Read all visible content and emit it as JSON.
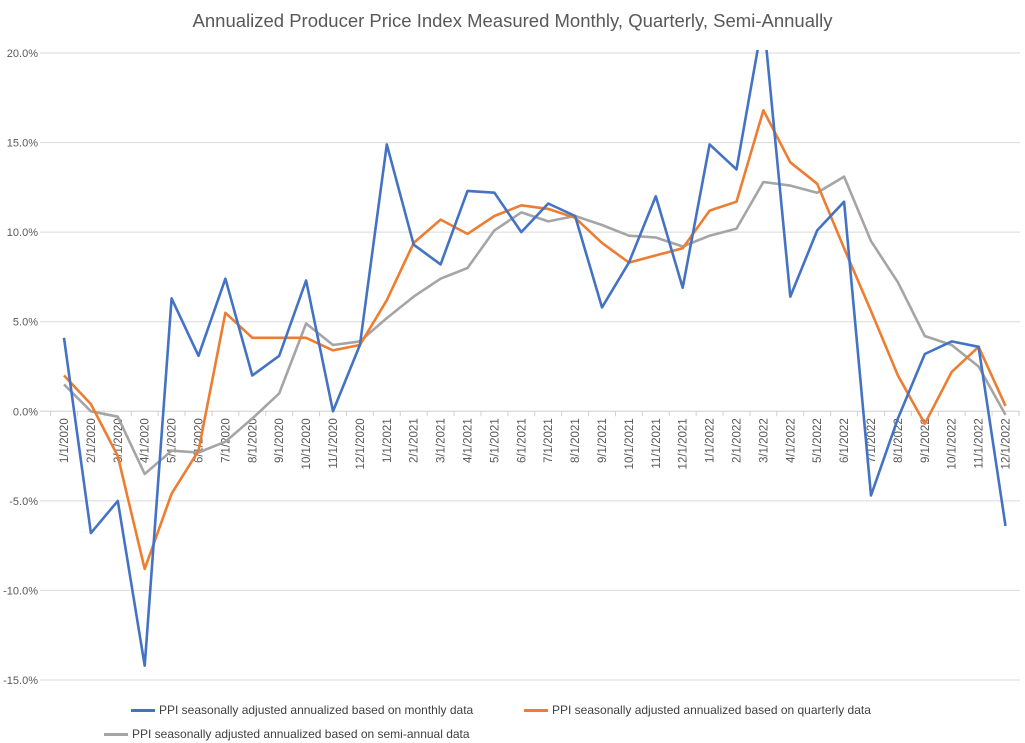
{
  "chart_data": {
    "type": "line",
    "title": "Annualized Producer Price Index Measured Monthly, Quarterly, Semi-Annually",
    "xlabel": "",
    "ylabel": "",
    "ylim": [
      -15,
      20
    ],
    "yticks": [
      "-15.0%",
      "-10.0%",
      "-5.0%",
      "0.0%",
      "5.0%",
      "10.0%",
      "15.0%",
      "20.0%"
    ],
    "grid": true,
    "legend_position": "bottom",
    "categories": [
      "1/1/2020",
      "2/1/2020",
      "3/1/2020",
      "4/1/2020",
      "5/1/2020",
      "6/1/2020",
      "7/1/2020",
      "8/1/2020",
      "9/1/2020",
      "10/1/2020",
      "11/1/2020",
      "12/1/2020",
      "1/1/2021",
      "2/1/2021",
      "3/1/2021",
      "4/1/2021",
      "5/1/2021",
      "6/1/2021",
      "7/1/2021",
      "8/1/2021",
      "9/1/2021",
      "10/1/2021",
      "11/1/2021",
      "12/1/2021",
      "1/1/2022",
      "2/1/2022",
      "3/1/2022",
      "4/1/2022",
      "5/1/2022",
      "6/1/2022",
      "7/1/2022",
      "8/1/2022",
      "9/1/2022",
      "10/1/2022",
      "11/1/2022",
      "12/1/2022"
    ],
    "series": [
      {
        "name": "PPI seasonally adjusted annualized based on monthly data",
        "color": "#4472C4",
        "values": [
          4.1,
          -6.8,
          -5.0,
          -14.2,
          6.3,
          3.1,
          7.4,
          2.0,
          3.1,
          7.3,
          0.0,
          3.7,
          14.9,
          9.3,
          8.2,
          12.3,
          12.2,
          10.0,
          11.6,
          10.9,
          5.8,
          8.3,
          12.0,
          6.9,
          14.9,
          13.5,
          22.0,
          6.4,
          10.1,
          11.7,
          -4.7,
          -0.4,
          3.2,
          3.9,
          3.6,
          -6.4
        ]
      },
      {
        "name": "PPI seasonally adjusted annualized based on quarterly data",
        "color": "#ED7D31",
        "values": [
          2.0,
          0.4,
          -2.5,
          -8.8,
          -4.6,
          -2.2,
          5.5,
          4.1,
          4.1,
          4.1,
          3.4,
          3.7,
          6.2,
          9.4,
          10.7,
          9.9,
          10.9,
          11.5,
          11.3,
          10.8,
          9.4,
          8.3,
          8.7,
          9.1,
          11.2,
          11.7,
          16.8,
          13.9,
          12.7,
          9.1,
          5.6,
          2.0,
          -0.7,
          2.2,
          3.6,
          0.3
        ]
      },
      {
        "name": "PPI seasonally adjusted annualized based on semi-annual data",
        "color": "#A5A5A5",
        "values": [
          1.5,
          0.0,
          -0.3,
          -3.5,
          -2.2,
          -2.3,
          -1.7,
          -0.4,
          1.0,
          4.9,
          3.7,
          3.9,
          5.2,
          6.4,
          7.4,
          8.0,
          10.1,
          11.1,
          10.6,
          10.9,
          10.4,
          9.8,
          9.7,
          9.2,
          9.8,
          10.2,
          12.8,
          12.6,
          12.2,
          13.1,
          9.5,
          7.2,
          4.2,
          3.7,
          2.5,
          -0.2
        ]
      }
    ]
  }
}
